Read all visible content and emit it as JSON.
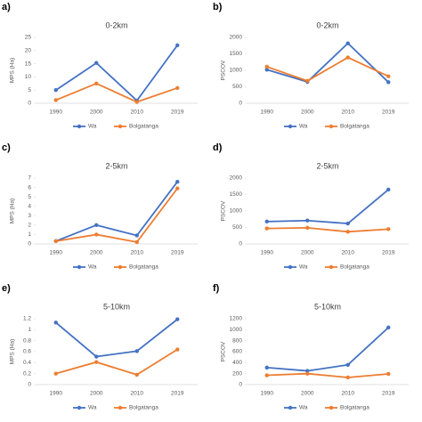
{
  "chart_data": [
    {
      "type": "line",
      "label": "a)",
      "title": "0-2km",
      "y_label": "MPS (Ha)",
      "categories": [
        "1990",
        "2000",
        "2010",
        "2019"
      ],
      "ylim": [
        0,
        25
      ],
      "yticks": [
        0,
        5,
        10,
        15,
        20,
        25
      ],
      "grid": false,
      "series": [
        {
          "name": "Wa",
          "color": "#4472c4",
          "values": [
            5,
            15.3,
            1,
            22
          ]
        },
        {
          "name": "Bolgatanga",
          "color": "#ed7d31",
          "values": [
            1.2,
            7.5,
            0.5,
            5.8
          ]
        }
      ]
    },
    {
      "type": "line",
      "label": "b)",
      "title": "0-2km",
      "y_label": "PSCOV",
      "categories": [
        "1990",
        "2000",
        "2010",
        "2019"
      ],
      "ylim": [
        0,
        2000
      ],
      "yticks": [
        0,
        500,
        1000,
        1500,
        2000
      ],
      "grid": false,
      "series": [
        {
          "name": "Wa",
          "color": "#4472c4",
          "values": [
            1020,
            650,
            1820,
            640
          ]
        },
        {
          "name": "Bolgatanga",
          "color": "#ed7d31",
          "values": [
            1110,
            680,
            1390,
            820
          ]
        }
      ]
    },
    {
      "type": "line",
      "label": "c)",
      "title": "2-5km",
      "y_label": "MPS (Ha)",
      "categories": [
        "1990",
        "2000",
        "2010",
        "2019"
      ],
      "ylim": [
        0,
        7
      ],
      "yticks": [
        0,
        1,
        2,
        3,
        4,
        5,
        6,
        7
      ],
      "grid": false,
      "series": [
        {
          "name": "Wa",
          "color": "#4472c4",
          "values": [
            0.3,
            2.0,
            0.9,
            6.6
          ]
        },
        {
          "name": "Bolgatanga",
          "color": "#ed7d31",
          "values": [
            0.3,
            1.0,
            0.2,
            5.9
          ]
        }
      ]
    },
    {
      "type": "line",
      "label": "d)",
      "title": "2-5km",
      "y_label": "PSCOV",
      "categories": [
        "1990",
        "2000",
        "2010",
        "2019"
      ],
      "ylim": [
        0,
        2000
      ],
      "yticks": [
        0,
        500,
        1000,
        1500,
        2000
      ],
      "grid": false,
      "series": [
        {
          "name": "Wa",
          "color": "#4472c4",
          "values": [
            680,
            710,
            620,
            1650
          ]
        },
        {
          "name": "Bolgatanga",
          "color": "#ed7d31",
          "values": [
            470,
            490,
            370,
            450
          ]
        }
      ]
    },
    {
      "type": "line",
      "label": "e)",
      "title": "5-10km",
      "y_label": "MPS (Ha)",
      "categories": [
        "1990",
        "2000",
        "2010",
        "2019"
      ],
      "ylim": [
        0,
        1.2
      ],
      "yticks": [
        0,
        0.2,
        0.4,
        0.6,
        0.8,
        1,
        1.2
      ],
      "grid": false,
      "series": [
        {
          "name": "Wa",
          "color": "#4472c4",
          "values": [
            1.13,
            0.51,
            0.61,
            1.19
          ]
        },
        {
          "name": "Bolgatanga",
          "color": "#ed7d31",
          "values": [
            0.2,
            0.41,
            0.18,
            0.64
          ]
        }
      ]
    },
    {
      "type": "line",
      "label": "f)",
      "title": "5-10km",
      "y_label": "PSCOV",
      "categories": [
        "1990",
        "2000",
        "2010",
        "2019"
      ],
      "ylim": [
        0,
        1200
      ],
      "yticks": [
        0,
        200,
        400,
        600,
        800,
        1000,
        1200
      ],
      "grid": false,
      "series": [
        {
          "name": "Wa",
          "color": "#4472c4",
          "values": [
            310,
            250,
            360,
            1040
          ]
        },
        {
          "name": "Bolgatanga",
          "color": "#ed7d31",
          "values": [
            170,
            200,
            130,
            195
          ]
        }
      ]
    }
  ]
}
